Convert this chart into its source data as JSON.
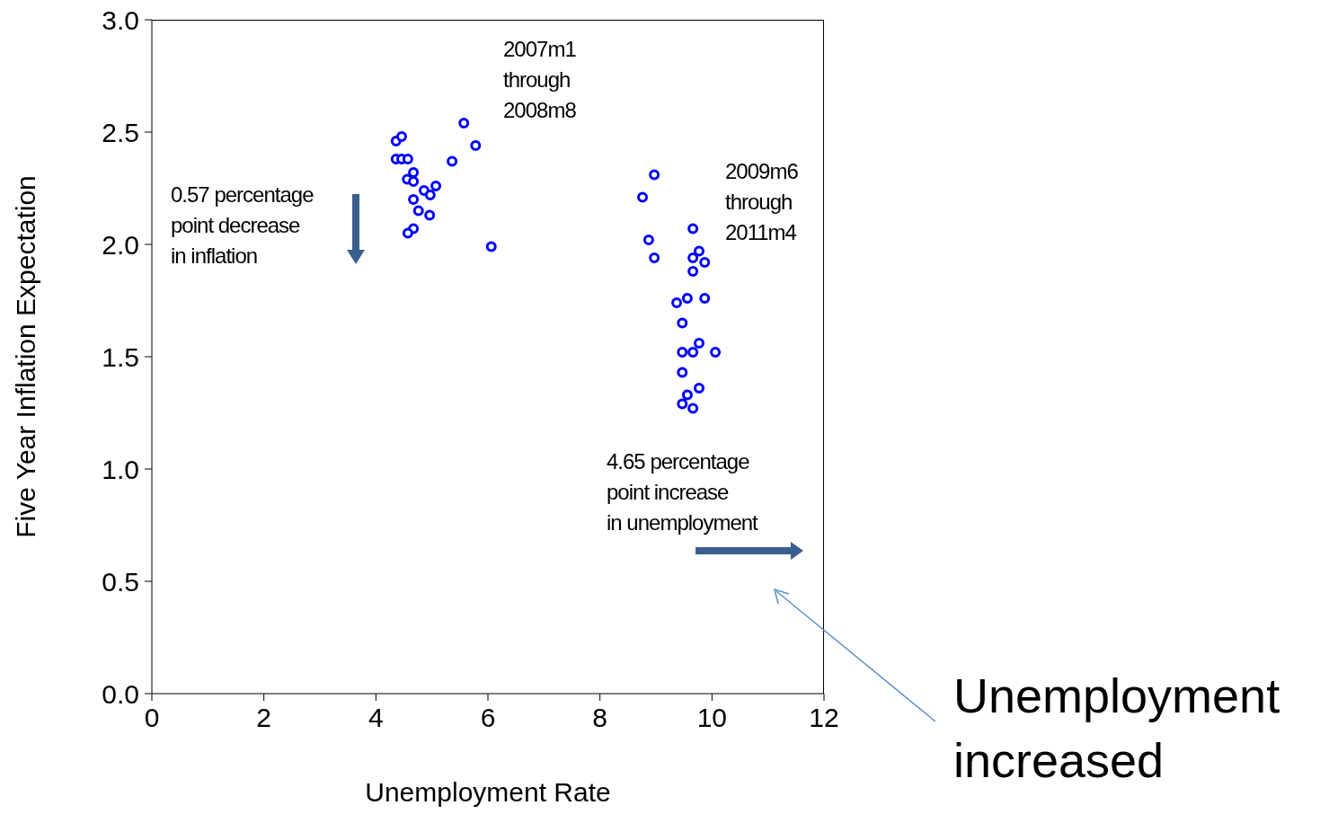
{
  "chart_data": {
    "type": "scatter",
    "xlabel": "Unemployment Rate",
    "ylabel": "Five Year Inflation Expectation",
    "x": [
      4.36,
      4.46,
      4.36,
      4.46,
      4.57,
      4.67,
      4.56,
      4.67,
      4.67,
      4.86,
      4.97,
      5.07,
      4.76,
      4.96,
      4.67,
      4.57,
      5.57,
      5.78,
      5.36,
      6.06,
      8.97,
      8.76,
      8.87,
      8.97,
      9.66,
      9.77,
      9.66,
      9.87,
      9.66,
      9.37,
      9.56,
      9.87,
      9.47,
      9.77,
      9.47,
      9.66,
      10.06,
      9.47,
      9.77,
      9.56,
      9.47,
      9.66
    ],
    "values": [
      2.46,
      2.48,
      2.38,
      2.38,
      2.38,
      2.32,
      2.29,
      2.28,
      2.2,
      2.24,
      2.22,
      2.26,
      2.15,
      2.13,
      2.07,
      2.05,
      2.54,
      2.44,
      2.37,
      1.99,
      2.31,
      2.21,
      2.02,
      1.94,
      2.07,
      1.97,
      1.94,
      1.92,
      1.88,
      1.74,
      1.76,
      1.76,
      1.65,
      1.56,
      1.52,
      1.52,
      1.52,
      1.43,
      1.36,
      1.33,
      1.29,
      1.27
    ],
    "color": "#0000ff",
    "marker": "circle",
    "xlim": [
      0,
      12
    ],
    "xticks": [
      0,
      2,
      4,
      6,
      8,
      10,
      12
    ],
    "ylim": [
      0,
      3
    ],
    "yticks": [
      {
        "value": 0,
        "label": "0.0"
      },
      {
        "value": 0.5,
        "label": "0.5"
      },
      {
        "value": 1,
        "label": "1.0"
      },
      {
        "value": 1.5,
        "label": "1.5"
      },
      {
        "value": 2,
        "label": "2.0"
      },
      {
        "value": 2.5,
        "label": "2.5"
      },
      {
        "value": 3,
        "label": "3.0"
      }
    ],
    "grid": false,
    "annotations": [
      "2007m1\nthrough\n2008m8",
      "2009m6\nthrough\n2011m4",
      "0.57 percentage\npoint decrease\nin inflation",
      "4.65 percentage\npoint increase\nin unemployment",
      "Unemployment\nincreased"
    ]
  }
}
